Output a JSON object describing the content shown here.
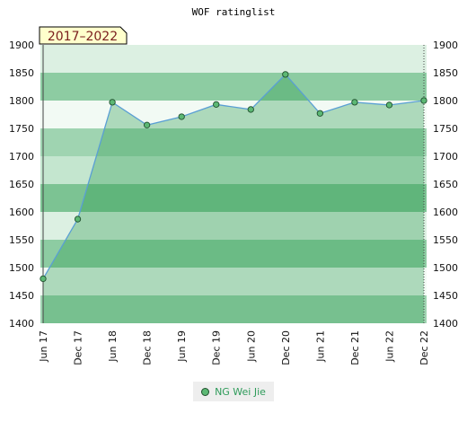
{
  "chart_data": {
    "type": "area",
    "title": "WOF ratinglist",
    "period_label": "2017–2022",
    "categories": [
      "Jun 17",
      "Dec 17",
      "Jun 18",
      "Dec 18",
      "Jun 19",
      "Dec 19",
      "Jun 20",
      "Dec 20",
      "Jun 21",
      "Dec 21",
      "Jun 22",
      "Dec 22"
    ],
    "series": [
      {
        "name": "NG Wei Jie",
        "values": [
          1480,
          1587,
          1797,
          1756,
          1771,
          1793,
          1784,
          1847,
          1777,
          1797,
          1792,
          1800
        ]
      }
    ],
    "ylim": [
      1400,
      1900
    ],
    "yticks": [
      1400,
      1450,
      1500,
      1550,
      1600,
      1650,
      1700,
      1750,
      1800,
      1850,
      1900
    ],
    "legend_position": "bottom-center",
    "grid": true,
    "colors": {
      "line": "#5a9fd4",
      "marker_fill": "#5cb874",
      "marker_stroke": "#1f4f2d",
      "legend_text": "#2e9b5a"
    }
  }
}
